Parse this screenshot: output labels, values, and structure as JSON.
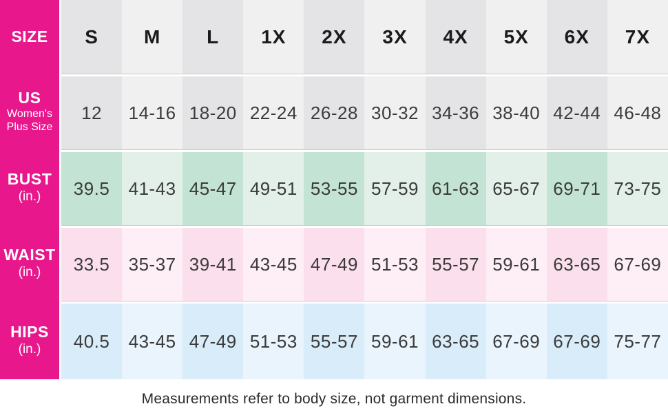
{
  "chart_data": {
    "type": "table",
    "columns": [
      "S",
      "M",
      "L",
      "1X",
      "2X",
      "3X",
      "4X",
      "5X",
      "6X",
      "7X"
    ],
    "rows": [
      {
        "label": "US Women's Plus Size",
        "values": [
          "12",
          "14-16",
          "18-20",
          "22-24",
          "26-28",
          "30-32",
          "34-36",
          "38-40",
          "42-44",
          "46-48"
        ]
      },
      {
        "label": "BUST (in.)",
        "values": [
          "39.5",
          "41-43",
          "45-47",
          "49-51",
          "53-55",
          "57-59",
          "61-63",
          "65-67",
          "69-71",
          "73-75"
        ]
      },
      {
        "label": "WAIST (in.)",
        "values": [
          "33.5",
          "35-37",
          "39-41",
          "43-45",
          "47-49",
          "51-53",
          "55-57",
          "59-61",
          "63-65",
          "67-69"
        ]
      },
      {
        "label": "HIPS (in.)",
        "values": [
          "40.5",
          "43-45",
          "47-49",
          "51-53",
          "55-57",
          "59-61",
          "63-65",
          "67-69",
          "67-69",
          "75-77"
        ]
      }
    ],
    "note": "Measurements refer to body size, not garment dimensions."
  },
  "table": {
    "corner_label": "SIZE",
    "columns": [
      "S",
      "M",
      "L",
      "1X",
      "2X",
      "3X",
      "4X",
      "5X",
      "6X",
      "7X"
    ],
    "rows": [
      {
        "key": "us-size",
        "label_main": "US",
        "label_sub_lines": [
          "Women's",
          "Plus Size"
        ],
        "theme": "gray",
        "values": [
          "12",
          "14-16",
          "18-20",
          "22-24",
          "26-28",
          "30-32",
          "34-36",
          "38-40",
          "42-44",
          "46-48"
        ]
      },
      {
        "key": "bust",
        "label_main": "BUST",
        "label_sub_lines": [
          "(in.)"
        ],
        "theme": "green",
        "values": [
          "39.5",
          "41-43",
          "45-47",
          "49-51",
          "53-55",
          "57-59",
          "61-63",
          "65-67",
          "69-71",
          "73-75"
        ]
      },
      {
        "key": "waist",
        "label_main": "WAIST",
        "label_sub_lines": [
          "(in.)"
        ],
        "theme": "pink",
        "values": [
          "33.5",
          "35-37",
          "39-41",
          "43-45",
          "47-49",
          "51-53",
          "55-57",
          "59-61",
          "63-65",
          "67-69"
        ]
      },
      {
        "key": "hips",
        "label_main": "HIPS",
        "label_sub_lines": [
          "(in.)"
        ],
        "theme": "blue",
        "values": [
          "40.5",
          "43-45",
          "47-49",
          "51-53",
          "55-57",
          "59-61",
          "63-65",
          "67-69",
          "67-69",
          "75-77"
        ]
      }
    ]
  },
  "footer": {
    "note": "Measurements refer to body size, not garment dimensions."
  },
  "colors": {
    "brand_magenta": "#E8188C",
    "separator": "#C9C9C9",
    "gray_dark": "#E4E4E6",
    "gray_light": "#F0F0F1",
    "green_dark": "#C3E4D4",
    "green_light": "#E3F0EA",
    "pink_dark": "#FBDFEC",
    "pink_light": "#FDEFF5",
    "blue_dark": "#D8ECFA",
    "blue_light": "#E9F4FC",
    "header_text": "#1B1B1B",
    "value_text": "#3B3B3B"
  }
}
